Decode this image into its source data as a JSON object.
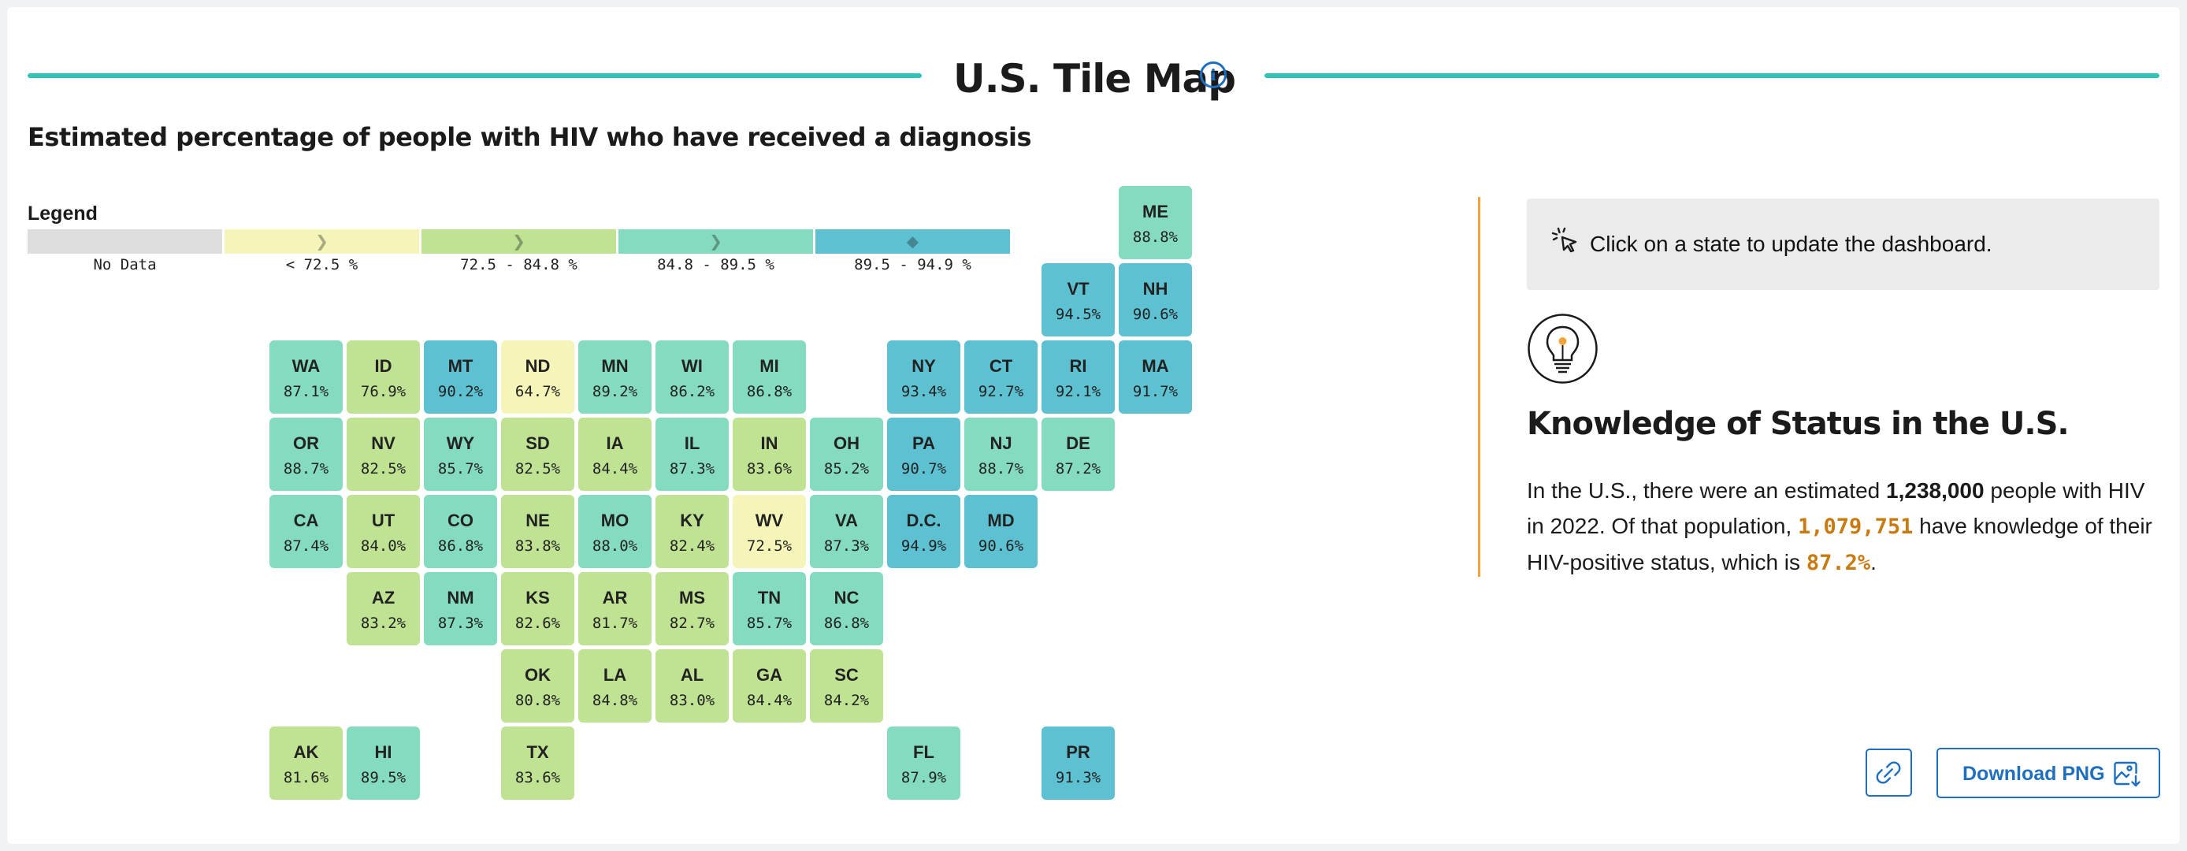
{
  "header": {
    "title": "U.S. Tile Map",
    "info_icon": "info-icon"
  },
  "map": {
    "subtitle": "Estimated percentage of people with HIV who have received a diagnosis",
    "legend": {
      "title": "Legend",
      "items": [
        {
          "label": "No Data",
          "color": "#dedede",
          "marker": ""
        },
        {
          "label": "< 72.5 %",
          "color": "#f6f5b9",
          "marker": "chevron-right"
        },
        {
          "label": "72.5 - 84.8 %",
          "color": "#bfe293",
          "marker": "chevron-right"
        },
        {
          "label": "84.8 - 89.5 %",
          "color": "#84dbbf",
          "marker": "chevron-right"
        },
        {
          "label": "89.5 - 94.9 %",
          "color": "#5dc1d2",
          "marker": "diamond"
        }
      ]
    },
    "tiles": [
      {
        "abbr": "ME",
        "value": "88.8%",
        "col": 11,
        "row": 0,
        "bin": 3
      },
      {
        "abbr": "VT",
        "value": "94.5%",
        "col": 10,
        "row": 1,
        "bin": 4
      },
      {
        "abbr": "NH",
        "value": "90.6%",
        "col": 11,
        "row": 1,
        "bin": 4
      },
      {
        "abbr": "WA",
        "value": "87.1%",
        "col": 0,
        "row": 2,
        "bin": 3
      },
      {
        "abbr": "ID",
        "value": "76.9%",
        "col": 1,
        "row": 2,
        "bin": 2
      },
      {
        "abbr": "MT",
        "value": "90.2%",
        "col": 2,
        "row": 2,
        "bin": 4
      },
      {
        "abbr": "ND",
        "value": "64.7%",
        "col": 3,
        "row": 2,
        "bin": 1
      },
      {
        "abbr": "MN",
        "value": "89.2%",
        "col": 4,
        "row": 2,
        "bin": 3
      },
      {
        "abbr": "WI",
        "value": "86.2%",
        "col": 5,
        "row": 2,
        "bin": 3
      },
      {
        "abbr": "MI",
        "value": "86.8%",
        "col": 6,
        "row": 2,
        "bin": 3
      },
      {
        "abbr": "NY",
        "value": "93.4%",
        "col": 8,
        "row": 2,
        "bin": 4
      },
      {
        "abbr": "CT",
        "value": "92.7%",
        "col": 9,
        "row": 2,
        "bin": 4
      },
      {
        "abbr": "RI",
        "value": "92.1%",
        "col": 10,
        "row": 2,
        "bin": 4
      },
      {
        "abbr": "MA",
        "value": "91.7%",
        "col": 11,
        "row": 2,
        "bin": 4
      },
      {
        "abbr": "OR",
        "value": "88.7%",
        "col": 0,
        "row": 3,
        "bin": 3
      },
      {
        "abbr": "NV",
        "value": "82.5%",
        "col": 1,
        "row": 3,
        "bin": 2
      },
      {
        "abbr": "WY",
        "value": "85.7%",
        "col": 2,
        "row": 3,
        "bin": 3
      },
      {
        "abbr": "SD",
        "value": "82.5%",
        "col": 3,
        "row": 3,
        "bin": 2
      },
      {
        "abbr": "IA",
        "value": "84.4%",
        "col": 4,
        "row": 3,
        "bin": 2
      },
      {
        "abbr": "IL",
        "value": "87.3%",
        "col": 5,
        "row": 3,
        "bin": 3
      },
      {
        "abbr": "IN",
        "value": "83.6%",
        "col": 6,
        "row": 3,
        "bin": 2
      },
      {
        "abbr": "OH",
        "value": "85.2%",
        "col": 7,
        "row": 3,
        "bin": 3
      },
      {
        "abbr": "PA",
        "value": "90.7%",
        "col": 8,
        "row": 3,
        "bin": 4
      },
      {
        "abbr": "NJ",
        "value": "88.7%",
        "col": 9,
        "row": 3,
        "bin": 3
      },
      {
        "abbr": "DE",
        "value": "87.2%",
        "col": 10,
        "row": 3,
        "bin": 3
      },
      {
        "abbr": "CA",
        "value": "87.4%",
        "col": 0,
        "row": 4,
        "bin": 3
      },
      {
        "abbr": "UT",
        "value": "84.0%",
        "col": 1,
        "row": 4,
        "bin": 2
      },
      {
        "abbr": "CO",
        "value": "86.8%",
        "col": 2,
        "row": 4,
        "bin": 3
      },
      {
        "abbr": "NE",
        "value": "83.8%",
        "col": 3,
        "row": 4,
        "bin": 2
      },
      {
        "abbr": "MO",
        "value": "88.0%",
        "col": 4,
        "row": 4,
        "bin": 3
      },
      {
        "abbr": "KY",
        "value": "82.4%",
        "col": 5,
        "row": 4,
        "bin": 2
      },
      {
        "abbr": "WV",
        "value": "72.5%",
        "col": 6,
        "row": 4,
        "bin": 1
      },
      {
        "abbr": "VA",
        "value": "87.3%",
        "col": 7,
        "row": 4,
        "bin": 3
      },
      {
        "abbr": "D.C.",
        "value": "94.9%",
        "col": 8,
        "row": 4,
        "bin": 4
      },
      {
        "abbr": "MD",
        "value": "90.6%",
        "col": 9,
        "row": 4,
        "bin": 4
      },
      {
        "abbr": "AZ",
        "value": "83.2%",
        "col": 1,
        "row": 5,
        "bin": 2
      },
      {
        "abbr": "NM",
        "value": "87.3%",
        "col": 2,
        "row": 5,
        "bin": 3
      },
      {
        "abbr": "KS",
        "value": "82.6%",
        "col": 3,
        "row": 5,
        "bin": 2
      },
      {
        "abbr": "AR",
        "value": "81.7%",
        "col": 4,
        "row": 5,
        "bin": 2
      },
      {
        "abbr": "MS",
        "value": "82.7%",
        "col": 5,
        "row": 5,
        "bin": 2
      },
      {
        "abbr": "TN",
        "value": "85.7%",
        "col": 6,
        "row": 5,
        "bin": 3
      },
      {
        "abbr": "NC",
        "value": "86.8%",
        "col": 7,
        "row": 5,
        "bin": 3
      },
      {
        "abbr": "OK",
        "value": "80.8%",
        "col": 3,
        "row": 6,
        "bin": 2
      },
      {
        "abbr": "LA",
        "value": "84.8%",
        "col": 4,
        "row": 6,
        "bin": 2
      },
      {
        "abbr": "AL",
        "value": "83.0%",
        "col": 5,
        "row": 6,
        "bin": 2
      },
      {
        "abbr": "GA",
        "value": "84.4%",
        "col": 6,
        "row": 6,
        "bin": 2
      },
      {
        "abbr": "SC",
        "value": "84.2%",
        "col": 7,
        "row": 6,
        "bin": 2
      },
      {
        "abbr": "AK",
        "value": "81.6%",
        "col": 0,
        "row": 7,
        "bin": 2
      },
      {
        "abbr": "HI",
        "value": "89.5%",
        "col": 1,
        "row": 7,
        "bin": 3
      },
      {
        "abbr": "TX",
        "value": "83.6%",
        "col": 3,
        "row": 7,
        "bin": 2
      },
      {
        "abbr": "FL",
        "value": "87.9%",
        "col": 8,
        "row": 7,
        "bin": 3
      },
      {
        "abbr": "PR",
        "value": "91.3%",
        "col": 10,
        "row": 7,
        "bin": 4
      }
    ]
  },
  "panel": {
    "hint": "Click on a state to update the dashboard.",
    "hint_icon": "cursor-click-icon",
    "bulb_icon": "lightbulb-icon",
    "bulb_color": "#f2a33a",
    "section_title": "Knowledge of Status in the U.S.",
    "p_part1": "In the U.S., there were an estimated ",
    "p_total": "1,238,000",
    "p_part2": " people with HIV in 2022. Of that population, ",
    "p_known": "1,079,751",
    "p_part3": " have knowledge of their HIV-positive status, which is ",
    "p_pct": "87.2%",
    "p_part4": ".",
    "accent_color": "#c97b10"
  },
  "actions": {
    "link_icon": "link-icon",
    "download_label": "Download PNG",
    "download_icon": "download-image-icon"
  }
}
